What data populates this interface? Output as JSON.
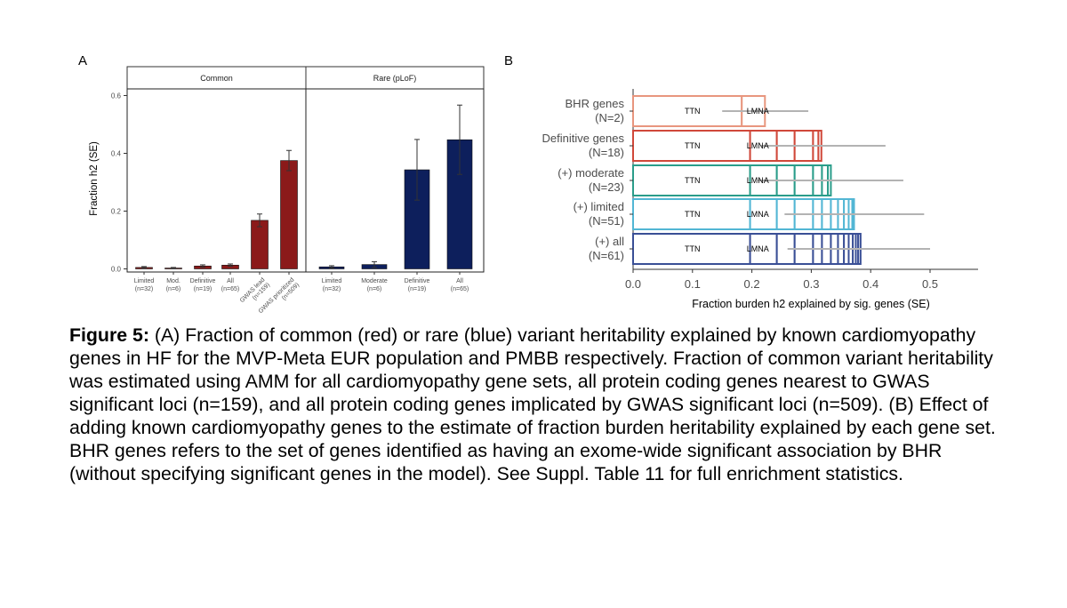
{
  "panel_a": {
    "letter": "A",
    "facets": [
      "Common",
      "Rare (pLoF)"
    ],
    "ylabel": "Fraction h2 (SE)",
    "yticks": [
      "0.0",
      "0.2",
      "0.4",
      "0.6"
    ]
  },
  "panel_b": {
    "letter": "B",
    "xlabel": "Fraction burden h2 explained by sig. genes (SE)",
    "xticks": [
      "0.0",
      "0.1",
      "0.2",
      "0.3",
      "0.4",
      "0.5"
    ],
    "gene_labels": [
      "TTN",
      "LMNA"
    ]
  },
  "caption": {
    "label": "Figure 5:",
    "text": " (A) Fraction of common (red) or rare (blue) variant heritability explained by known cardiomyopathy genes in HF for the MVP-Meta EUR population and PMBB respectively. Fraction of common variant heritability was estimated using AMM for all cardiomyopathy gene sets, all protein coding genes nearest to GWAS significant loci (n=159), and all protein coding genes implicated by GWAS significant loci (n=509). (B) Effect of adding known cardiomyopathy genes to the estimate of fraction burden heritability explained by each gene set. BHR genes refers to the set of genes identified as having an exome-wide significant association by BHR (without specifying significant genes in the model). See Suppl. Table 11 for full enrichment statistics."
  },
  "chart_data": [
    {
      "type": "bar",
      "panel": "A",
      "facets": [
        {
          "name": "Common",
          "color": "#8b1a1a",
          "categories": [
            "Limited\n(n=32)",
            "Mod.\n(n=6)",
            "Definitive\n(n=19)",
            "All\n(n=65)",
            "GWAS lead\n(n=159)",
            "GWAS prioritized\n(n=509)"
          ],
          "values": [
            0.005,
            0.003,
            0.01,
            0.013,
            0.168,
            0.375
          ],
          "se": [
            0.003,
            0.002,
            0.004,
            0.004,
            0.022,
            0.035
          ]
        },
        {
          "name": "Rare (pLoF)",
          "color": "#0d1f5c",
          "categories": [
            "Limited\n(n=32)",
            "Moderate\n(n=6)",
            "Definitive\n(n=19)",
            "All\n(n=65)"
          ],
          "values": [
            0.007,
            0.015,
            0.343,
            0.447
          ],
          "se": [
            0.004,
            0.01,
            0.105,
            0.12
          ]
        }
      ],
      "xlabel": "",
      "ylabel": "Fraction h2 (SE)",
      "ylim": [
        0,
        0.62
      ],
      "grid": false
    },
    {
      "type": "bar",
      "panel": "B",
      "orientation": "horizontal",
      "stacked": true,
      "categories": [
        "BHR genes\n(N=2)",
        "Definitive genes\n(N=18)",
        "(+) moderate\n(N=23)",
        "(+) limited\n(N=51)",
        "(+) all\n(N=61)"
      ],
      "colors": [
        "#e8967e",
        "#d0483a",
        "#2a9d8a",
        "#52b6d4",
        "#3a4f96"
      ],
      "segment_boundaries": [
        [
          0,
          0.183,
          0.222
        ],
        [
          0,
          0.197,
          0.242,
          0.272,
          0.303,
          0.312,
          0.317
        ],
        [
          0,
          0.197,
          0.242,
          0.272,
          0.303,
          0.318,
          0.328,
          0.333
        ],
        [
          0,
          0.197,
          0.242,
          0.272,
          0.303,
          0.318,
          0.333,
          0.345,
          0.355,
          0.363,
          0.369,
          0.372
        ],
        [
          0,
          0.197,
          0.242,
          0.272,
          0.303,
          0.318,
          0.333,
          0.345,
          0.355,
          0.363,
          0.37,
          0.375,
          0.379,
          0.383
        ]
      ],
      "totals": [
        0.222,
        0.317,
        0.333,
        0.372,
        0.383
      ],
      "se_ranges": [
        [
          0.15,
          0.295
        ],
        [
          0.215,
          0.425
        ],
        [
          0.21,
          0.455
        ],
        [
          0.255,
          0.49
        ],
        [
          0.26,
          0.5
        ]
      ],
      "xlabel": "Fraction burden h2 explained by sig. genes (SE)",
      "xlim": [
        0,
        0.58
      ],
      "grid": false
    }
  ]
}
